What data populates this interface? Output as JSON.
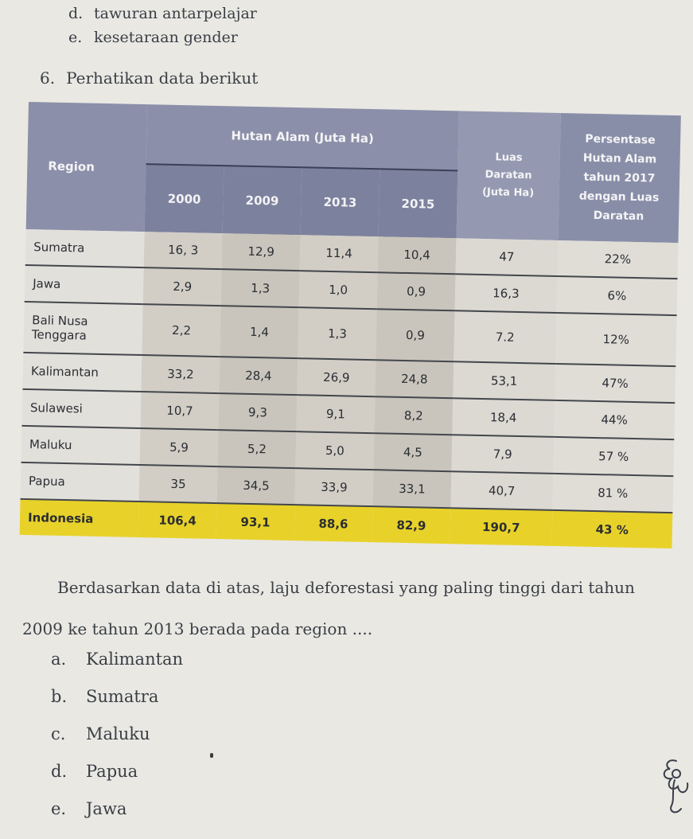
{
  "prev_options": [
    {
      "letter": "d.",
      "text": "tawuran antarpelajar"
    },
    {
      "letter": "e.",
      "text": "kesetaraan gender"
    }
  ],
  "question_number": "6.",
  "question_title": "Perhatikan data berikut",
  "table": {
    "headers": {
      "region": "Region",
      "group": "Hutan Alam (Juta Ha)",
      "years": [
        "2000",
        "2009",
        "2013",
        "2015"
      ],
      "luas": [
        "Luas",
        "Daratan",
        "(Juta Ha)"
      ],
      "pct": [
        "Persentase",
        "Hutan Alam",
        "tahun 2017",
        "dengan Luas",
        "Daratan"
      ]
    },
    "rows": [
      {
        "region": "Sumatra",
        "y2000": "16, 3",
        "y2009": "12,9",
        "y2013": "11,4",
        "y2015": "10,4",
        "luas": "47",
        "pct": "22%"
      },
      {
        "region": "Jawa",
        "y2000": "2,9",
        "y2009": "1,3",
        "y2013": "1,0",
        "y2015": "0,9",
        "luas": "16,3",
        "pct": "6%"
      },
      {
        "region": "Bali Nusa Tenggara",
        "y2000": "2,2",
        "y2009": "1,4",
        "y2013": "1,3",
        "y2015": "0,9",
        "luas": "7.2",
        "pct": "12%"
      },
      {
        "region": "Kalimantan",
        "y2000": "33,2",
        "y2009": "28,4",
        "y2013": "26,9",
        "y2015": "24,8",
        "luas": "53,1",
        "pct": "47%"
      },
      {
        "region": "Sulawesi",
        "y2000": "10,7",
        "y2009": "9,3",
        "y2013": "9,1",
        "y2015": "8,2",
        "luas": "18,4",
        "pct": "44%"
      },
      {
        "region": "Maluku",
        "y2000": "5,9",
        "y2009": "5,2",
        "y2013": "5,0",
        "y2015": "4,5",
        "luas": "7,9",
        "pct": "57 %"
      },
      {
        "region": "Papua",
        "y2000": "35",
        "y2009": "34,5",
        "y2013": "33,9",
        "y2015": "33,1",
        "luas": "40,7",
        "pct": "81 %"
      }
    ],
    "total": {
      "region": "Indonesia",
      "y2000": "106,4",
      "y2009": "93,1",
      "y2013": "88,6",
      "y2015": "82,9",
      "luas": "190,7",
      "pct": "43 %"
    }
  },
  "question_text": [
    "Berdasarkan data di atas, laju deforestasi yang paling tinggi dari tahun",
    "2009 ke tahun 2013 berada pada region ...."
  ],
  "options": [
    {
      "letter": "a.",
      "text": "Kalimantan"
    },
    {
      "letter": "b.",
      "text": "Sumatra"
    },
    {
      "letter": "c.",
      "text": "Maluku"
    },
    {
      "letter": "d.",
      "text": "Papua"
    },
    {
      "letter": "e.",
      "text": "Jawa"
    }
  ]
}
